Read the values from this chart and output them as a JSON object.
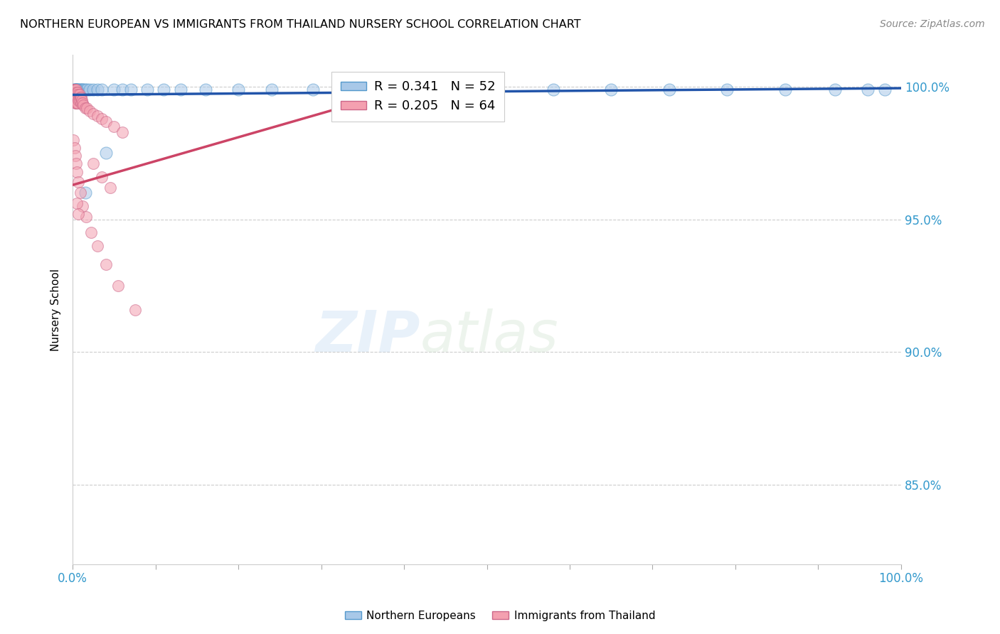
{
  "title": "NORTHERN EUROPEAN VS IMMIGRANTS FROM THAILAND NURSERY SCHOOL CORRELATION CHART",
  "source": "Source: ZipAtlas.com",
  "ylabel": "Nursery School",
  "legend_label1": "Northern Europeans",
  "legend_label2": "Immigrants from Thailand",
  "r1": 0.341,
  "n1": 52,
  "r2": 0.205,
  "n2": 64,
  "color_blue": "#a8c8e8",
  "color_pink": "#f4a0b0",
  "edge_blue": "#5599cc",
  "edge_pink": "#cc6688",
  "line_blue": "#2255aa",
  "line_pink": "#cc4466",
  "watermark_zip": "ZIP",
  "watermark_atlas": "atlas",
  "blue_x": [
    0.001,
    0.002,
    0.002,
    0.003,
    0.003,
    0.003,
    0.004,
    0.004,
    0.005,
    0.005,
    0.006,
    0.006,
    0.007,
    0.007,
    0.008,
    0.009,
    0.01,
    0.011,
    0.012,
    0.013,
    0.015,
    0.017,
    0.02,
    0.025,
    0.03,
    0.035,
    0.04,
    0.05,
    0.06,
    0.07,
    0.09,
    0.11,
    0.13,
    0.16,
    0.2,
    0.24,
    0.29,
    0.35,
    0.42,
    0.5,
    0.58,
    0.65,
    0.72,
    0.79,
    0.86,
    0.92,
    0.96,
    0.98,
    0.003,
    0.004,
    0.005,
    0.015
  ],
  "blue_y": [
    0.999,
    0.999,
    0.998,
    0.999,
    0.998,
    0.998,
    0.999,
    0.998,
    0.999,
    0.998,
    0.999,
    0.998,
    0.999,
    0.998,
    0.999,
    0.999,
    0.998,
    0.999,
    0.999,
    0.999,
    0.999,
    0.999,
    0.999,
    0.999,
    0.999,
    0.999,
    0.975,
    0.999,
    0.999,
    0.999,
    0.999,
    0.999,
    0.999,
    0.999,
    0.999,
    0.999,
    0.999,
    0.999,
    0.999,
    0.999,
    0.999,
    0.999,
    0.999,
    0.999,
    0.999,
    0.999,
    0.999,
    0.999,
    0.999,
    0.999,
    0.999,
    0.96
  ],
  "pink_x": [
    0.001,
    0.001,
    0.001,
    0.001,
    0.002,
    0.002,
    0.002,
    0.002,
    0.002,
    0.003,
    0.003,
    0.003,
    0.003,
    0.003,
    0.003,
    0.004,
    0.004,
    0.004,
    0.004,
    0.005,
    0.005,
    0.005,
    0.005,
    0.006,
    0.006,
    0.006,
    0.007,
    0.007,
    0.008,
    0.008,
    0.009,
    0.01,
    0.01,
    0.011,
    0.012,
    0.013,
    0.015,
    0.017,
    0.02,
    0.025,
    0.03,
    0.035,
    0.04,
    0.05,
    0.06,
    0.025,
    0.035,
    0.045,
    0.001,
    0.002,
    0.003,
    0.004,
    0.005,
    0.007,
    0.009,
    0.012,
    0.016,
    0.022,
    0.03,
    0.04,
    0.055,
    0.075,
    0.005,
    0.007
  ],
  "pink_y": [
    0.999,
    0.998,
    0.997,
    0.996,
    0.999,
    0.998,
    0.997,
    0.996,
    0.995,
    0.999,
    0.998,
    0.997,
    0.996,
    0.995,
    0.994,
    0.999,
    0.997,
    0.996,
    0.994,
    0.998,
    0.997,
    0.996,
    0.994,
    0.998,
    0.996,
    0.994,
    0.997,
    0.995,
    0.997,
    0.995,
    0.996,
    0.996,
    0.994,
    0.995,
    0.994,
    0.993,
    0.992,
    0.992,
    0.991,
    0.99,
    0.989,
    0.988,
    0.987,
    0.985,
    0.983,
    0.971,
    0.966,
    0.962,
    0.98,
    0.977,
    0.974,
    0.971,
    0.968,
    0.964,
    0.96,
    0.955,
    0.951,
    0.945,
    0.94,
    0.933,
    0.925,
    0.916,
    0.956,
    0.952
  ]
}
